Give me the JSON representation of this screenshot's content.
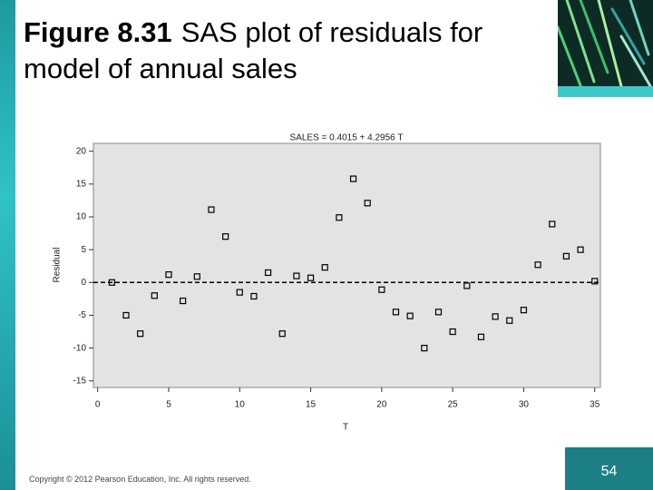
{
  "slide": {
    "figure_label": "Figure 8.31",
    "title": "SAS plot of residuals for model of annual sales",
    "copyright": "Copyright © 2012 Pearson Education, Inc. All rights reserved.",
    "page_number": "54"
  },
  "chart_data": {
    "type": "scatter",
    "title": "SALES = 0.4015 + 4.2956 T",
    "x_label": "T",
    "y_label": "Residual",
    "x": [
      1,
      2,
      3,
      4,
      5,
      6,
      7,
      8,
      9,
      10,
      11,
      12,
      13,
      14,
      15,
      16,
      17,
      18,
      19,
      20,
      21,
      22,
      23,
      24,
      25,
      26,
      27,
      28,
      29,
      30,
      31,
      32,
      33,
      34,
      35
    ],
    "values": [
      0,
      -5,
      -7.8,
      -2,
      1.2,
      -2.8,
      0.9,
      11.1,
      7,
      -1.5,
      -2.1,
      1.5,
      -7.8,
      1.0,
      0.7,
      2.3,
      9.9,
      15.8,
      12.1,
      -1.1,
      -4.5,
      -5.1,
      -10,
      -4.5,
      -7.5,
      -0.5,
      -8.3,
      -5.2,
      -5.8,
      -4.2,
      2.7,
      8.9,
      4.0,
      5.0,
      0.2
    ],
    "xlim": [
      -0.3,
      35.4
    ],
    "ylim": [
      -16,
      21.2
    ],
    "xticks": [
      0,
      5,
      10,
      15,
      20,
      25,
      30,
      35
    ],
    "yticks": [
      -15,
      -10,
      -5,
      0,
      5,
      10,
      15,
      20
    ],
    "reference_line": 0,
    "background": "#e3e3e3",
    "marker_color": "#000000"
  }
}
